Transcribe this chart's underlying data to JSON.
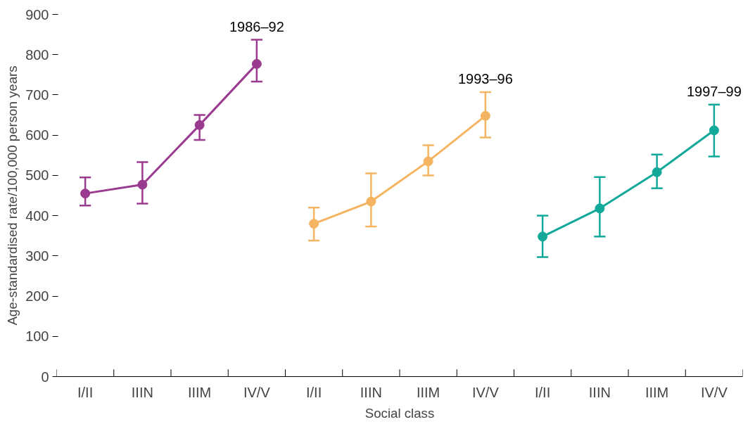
{
  "chart_data": {
    "type": "line",
    "xlabel": "Social class",
    "ylabel": "Age-standardised rate/100,000 person years",
    "categories": [
      "I/II",
      "IIIN",
      "IIIM",
      "IV/V",
      "I/II",
      "IIIN",
      "IIIM",
      "IV/V",
      "I/II",
      "IIIN",
      "IIIM",
      "IV/V"
    ],
    "ylim": [
      0,
      900
    ],
    "yticks": [
      0,
      100,
      200,
      300,
      400,
      500,
      600,
      700,
      800,
      900
    ],
    "grid": false,
    "marker": "circle",
    "line_style": "solid",
    "series": [
      {
        "name": "1986–92",
        "color": "#9b3b8f",
        "values": [
          455,
          477,
          625,
          777,
          null,
          null,
          null,
          null,
          null,
          null,
          null,
          null
        ],
        "errors": [
          [
            425,
            495
          ],
          [
            430,
            533
          ],
          [
            588,
            650
          ],
          [
            733,
            837
          ],
          null,
          null,
          null,
          null,
          null,
          null,
          null,
          null
        ]
      },
      {
        "name": "1993–96",
        "color": "#f5b461",
        "values": [
          null,
          null,
          null,
          null,
          380,
          435,
          535,
          648,
          null,
          null,
          null,
          null
        ],
        "errors": [
          null,
          null,
          null,
          null,
          [
            338,
            420
          ],
          [
            373,
            505
          ],
          [
            500,
            575
          ],
          [
            594,
            707
          ],
          null,
          null,
          null,
          null
        ]
      },
      {
        "name": "1997–99",
        "color": "#12a89a",
        "values": [
          null,
          null,
          null,
          null,
          null,
          null,
          null,
          null,
          348,
          418,
          508,
          612
        ],
        "errors": [
          null,
          null,
          null,
          null,
          null,
          null,
          null,
          null,
          [
            297,
            400
          ],
          [
            348,
            496
          ],
          [
            468,
            552
          ],
          [
            547,
            676
          ]
        ]
      }
    ]
  }
}
